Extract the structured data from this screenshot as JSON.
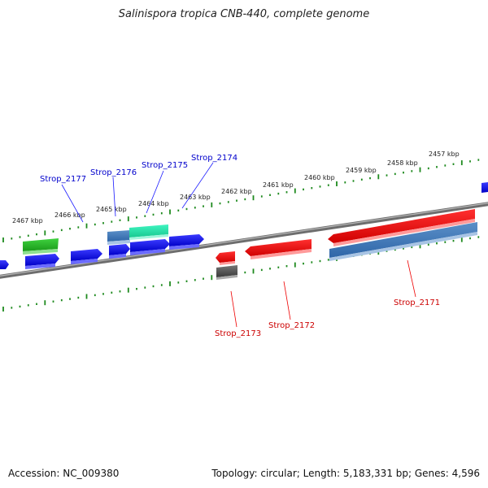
{
  "title": "Salinispora tropica CNB-440, complete genome",
  "footer": {
    "accession": "Accession: NC_009380",
    "topology": "Topology: circular; Length: 5,183,331 bp; Genes: 4,596"
  },
  "colors": {
    "backbone": "#7a7a7a",
    "tick": "#1e8a1e",
    "forward_cds": "#0000ee",
    "reverse_cds": "#ee0000",
    "rna": "#3a7bbf",
    "teal": "#20e0a8",
    "green": "#22b822",
    "gray": "#555555",
    "label_blue": "#0000cc",
    "label_red": "#cc0000"
  },
  "scale_labels": [
    "2467 kbp",
    "2466 kbp",
    "2465 kbp",
    "2464 kbp",
    "2463 kbp",
    "2462 kbp",
    "2461 kbp",
    "2460 kbp",
    "2459 kbp",
    "2458 kbp",
    "2457 kbp"
  ],
  "gene_labels_top": [
    "Strop_2177",
    "Strop_2176",
    "Strop_2175",
    "Strop_2174"
  ],
  "gene_labels_bottom": [
    "Strop_2173",
    "Strop_2172",
    "Strop_2171"
  ]
}
